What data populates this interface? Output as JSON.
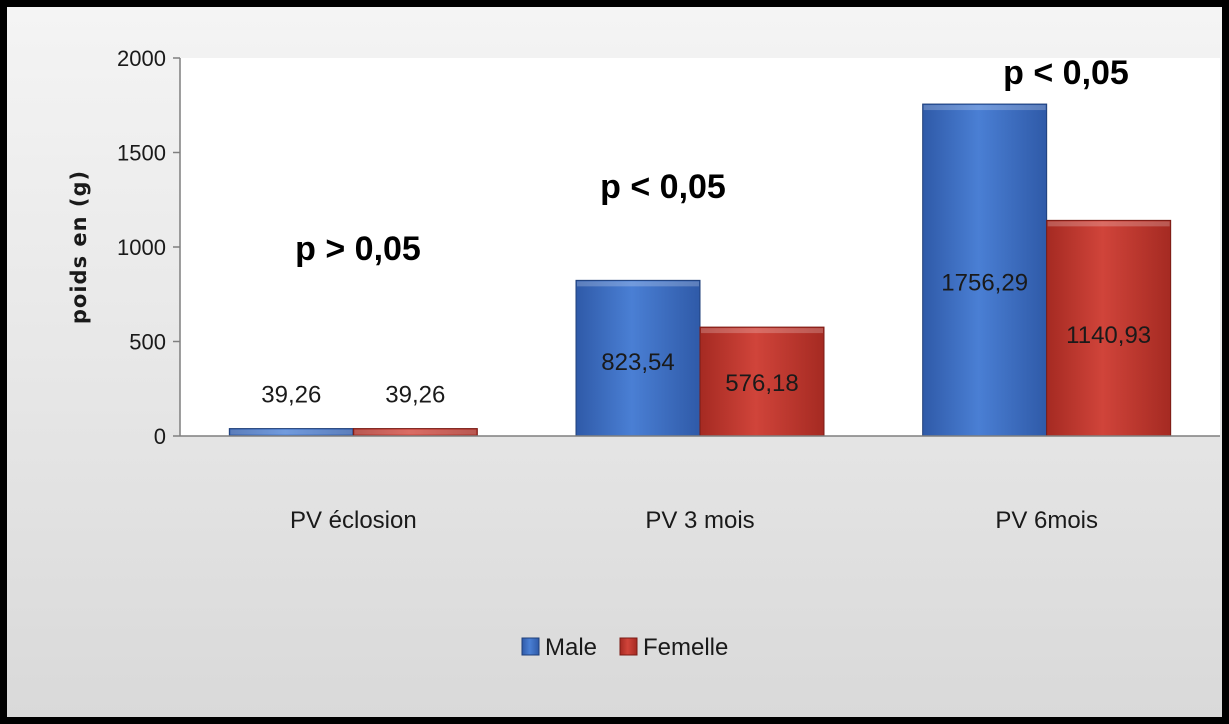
{
  "chart_data": {
    "type": "bar",
    "categories": [
      "PV éclosion",
      "PV 3 mois",
      "PV 6mois"
    ],
    "series": [
      {
        "name": "Male",
        "values": [
          39.26,
          823.54,
          1756.29
        ],
        "labels": [
          "39,26",
          "823,54",
          "1756,29"
        ]
      },
      {
        "name": "Femelle",
        "values": [
          39.26,
          576.18,
          1140.93
        ],
        "labels": [
          "39,26",
          "576,18",
          "1140,93"
        ]
      }
    ],
    "ylabel": "poids en (g)",
    "xlabel": "",
    "ylim": [
      0,
      2000
    ],
    "yticks": [
      0,
      500,
      1000,
      1500,
      2000
    ],
    "annotations": [
      "p > 0,05",
      "p < 0,05",
      "p < 0,05"
    ],
    "legend_position": "bottom",
    "grid": false,
    "colors": {
      "Male": "#4472c4",
      "Femelle": "#c0392b"
    }
  }
}
